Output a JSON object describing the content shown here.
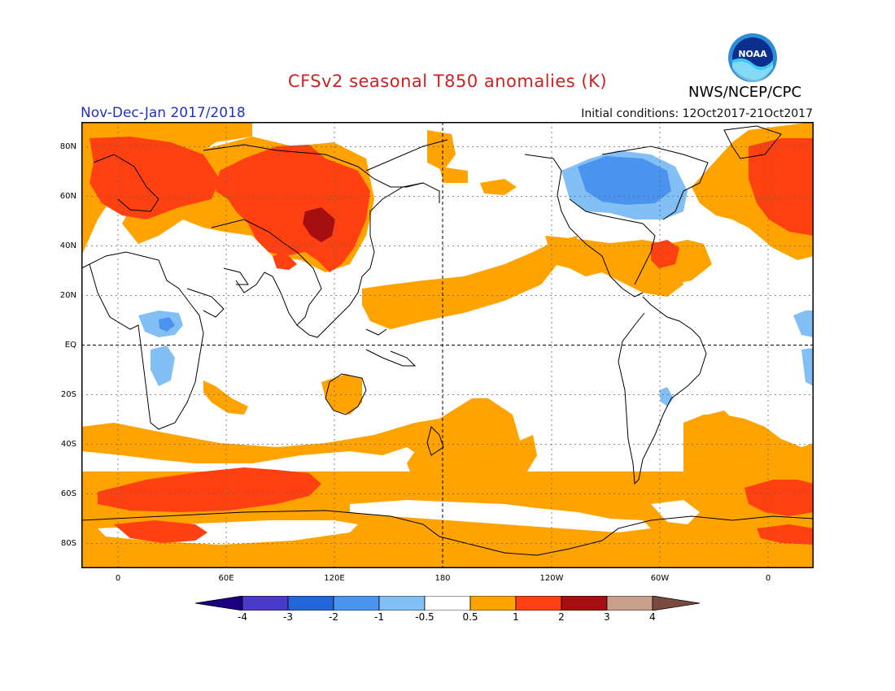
{
  "header": {
    "title": "CFSv2 seasonal T850 anomalies (K)",
    "org": "NWS/NCEP/CPC",
    "period": "Nov-Dec-Jan 2017/2018",
    "initial_conditions": "Initial conditions: 12Oct2017-21Oct2017",
    "logo_text": "NOAA"
  },
  "map": {
    "lat_labels": [
      "80N",
      "60N",
      "40N",
      "20N",
      "EQ",
      "20S",
      "40S",
      "60S",
      "80S"
    ],
    "lon_labels": [
      "0",
      "60E",
      "120E",
      "180",
      "120W",
      "60W",
      "0"
    ]
  },
  "colorbar": {
    "labels": [
      "-4",
      "-3",
      "-2",
      "-1",
      "-0.5",
      "0.5",
      "1",
      "2",
      "3",
      "4"
    ],
    "colors": [
      "#1a0080",
      "#4b3cc8",
      "#2266d8",
      "#4a93ee",
      "#82bff5",
      "#ffffff",
      "#ffa300",
      "#ff4010",
      "#a50f0f",
      "#c9a08e",
      "#7a4a40"
    ]
  }
}
